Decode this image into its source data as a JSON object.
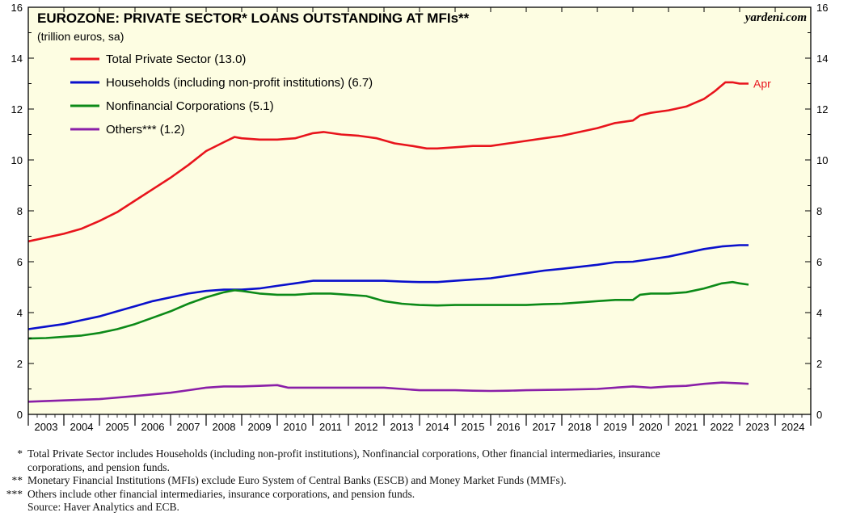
{
  "chart_data": {
    "type": "line",
    "title": "EUROZONE: PRIVATE SECTOR* LOANS OUTSTANDING AT MFIs**",
    "subtitle": "(trillion euros, sa)",
    "source_label": "yardeni.com",
    "ylim": [
      0,
      16
    ],
    "yticks": [
      0,
      2,
      4,
      6,
      8,
      10,
      12,
      14,
      16
    ],
    "xlim": [
      2003,
      2025
    ],
    "xtick_labels": [
      "2003",
      "2004",
      "2005",
      "2006",
      "2007",
      "2008",
      "2009",
      "2010",
      "2011",
      "2012",
      "2013",
      "2014",
      "2015",
      "2016",
      "2017",
      "2018",
      "2019",
      "2020",
      "2021",
      "2022",
      "2023",
      "2024"
    ],
    "annotation": "Apr",
    "background": "#fdfde2",
    "series": [
      {
        "name": "Total Private Sector (13.0)",
        "color": "#e8141c",
        "points": [
          [
            2003.0,
            6.8
          ],
          [
            2003.5,
            6.95
          ],
          [
            2004.0,
            7.1
          ],
          [
            2004.5,
            7.3
          ],
          [
            2005.0,
            7.6
          ],
          [
            2005.5,
            7.95
          ],
          [
            2006.0,
            8.4
          ],
          [
            2006.5,
            8.85
          ],
          [
            2007.0,
            9.3
          ],
          [
            2007.5,
            9.8
          ],
          [
            2008.0,
            10.35
          ],
          [
            2008.5,
            10.7
          ],
          [
            2008.8,
            10.9
          ],
          [
            2009.0,
            10.85
          ],
          [
            2009.5,
            10.8
          ],
          [
            2010.0,
            10.8
          ],
          [
            2010.5,
            10.85
          ],
          [
            2011.0,
            11.05
          ],
          [
            2011.3,
            11.1
          ],
          [
            2011.8,
            11.0
          ],
          [
            2012.3,
            10.95
          ],
          [
            2012.8,
            10.85
          ],
          [
            2013.3,
            10.65
          ],
          [
            2013.8,
            10.55
          ],
          [
            2014.2,
            10.45
          ],
          [
            2014.5,
            10.45
          ],
          [
            2015.0,
            10.5
          ],
          [
            2015.5,
            10.55
          ],
          [
            2016.0,
            10.55
          ],
          [
            2016.5,
            10.65
          ],
          [
            2017.0,
            10.75
          ],
          [
            2017.5,
            10.85
          ],
          [
            2018.0,
            10.95
          ],
          [
            2018.5,
            11.1
          ],
          [
            2019.0,
            11.25
          ],
          [
            2019.5,
            11.45
          ],
          [
            2020.0,
            11.55
          ],
          [
            2020.2,
            11.75
          ],
          [
            2020.5,
            11.85
          ],
          [
            2021.0,
            11.95
          ],
          [
            2021.5,
            12.1
          ],
          [
            2022.0,
            12.4
          ],
          [
            2022.3,
            12.7
          ],
          [
            2022.6,
            13.05
          ],
          [
            2022.8,
            13.05
          ],
          [
            2023.0,
            13.0
          ],
          [
            2023.25,
            13.0
          ]
        ]
      },
      {
        "name": "Households (including non-profit institutions) (6.7)",
        "color": "#0a10cc",
        "points": [
          [
            2003.0,
            3.35
          ],
          [
            2003.5,
            3.45
          ],
          [
            2004.0,
            3.55
          ],
          [
            2004.5,
            3.7
          ],
          [
            2005.0,
            3.85
          ],
          [
            2005.5,
            4.05
          ],
          [
            2006.0,
            4.25
          ],
          [
            2006.5,
            4.45
          ],
          [
            2007.0,
            4.6
          ],
          [
            2007.5,
            4.75
          ],
          [
            2008.0,
            4.85
          ],
          [
            2008.5,
            4.9
          ],
          [
            2009.0,
            4.9
          ],
          [
            2009.5,
            4.95
          ],
          [
            2010.0,
            5.05
          ],
          [
            2010.5,
            5.15
          ],
          [
            2011.0,
            5.25
          ],
          [
            2011.5,
            5.25
          ],
          [
            2012.0,
            5.25
          ],
          [
            2012.5,
            5.25
          ],
          [
            2013.0,
            5.25
          ],
          [
            2013.5,
            5.22
          ],
          [
            2014.0,
            5.2
          ],
          [
            2014.5,
            5.2
          ],
          [
            2015.0,
            5.25
          ],
          [
            2015.5,
            5.3
          ],
          [
            2016.0,
            5.35
          ],
          [
            2016.5,
            5.45
          ],
          [
            2017.0,
            5.55
          ],
          [
            2017.5,
            5.65
          ],
          [
            2018.0,
            5.72
          ],
          [
            2018.5,
            5.8
          ],
          [
            2019.0,
            5.88
          ],
          [
            2019.5,
            5.98
          ],
          [
            2020.0,
            6.0
          ],
          [
            2020.5,
            6.1
          ],
          [
            2021.0,
            6.2
          ],
          [
            2021.5,
            6.35
          ],
          [
            2022.0,
            6.5
          ],
          [
            2022.5,
            6.6
          ],
          [
            2023.0,
            6.65
          ],
          [
            2023.25,
            6.65
          ]
        ]
      },
      {
        "name": "Nonfinancial Corporations (5.1)",
        "color": "#0c8a18",
        "points": [
          [
            2003.0,
            2.98
          ],
          [
            2003.5,
            3.0
          ],
          [
            2004.0,
            3.05
          ],
          [
            2004.5,
            3.1
          ],
          [
            2005.0,
            3.2
          ],
          [
            2005.5,
            3.35
          ],
          [
            2006.0,
            3.55
          ],
          [
            2006.5,
            3.8
          ],
          [
            2007.0,
            4.05
          ],
          [
            2007.5,
            4.35
          ],
          [
            2008.0,
            4.6
          ],
          [
            2008.5,
            4.8
          ],
          [
            2008.8,
            4.88
          ],
          [
            2009.0,
            4.85
          ],
          [
            2009.5,
            4.75
          ],
          [
            2010.0,
            4.7
          ],
          [
            2010.5,
            4.7
          ],
          [
            2011.0,
            4.75
          ],
          [
            2011.5,
            4.75
          ],
          [
            2012.0,
            4.7
          ],
          [
            2012.5,
            4.65
          ],
          [
            2013.0,
            4.45
          ],
          [
            2013.5,
            4.35
          ],
          [
            2014.0,
            4.3
          ],
          [
            2014.5,
            4.28
          ],
          [
            2015.0,
            4.3
          ],
          [
            2015.5,
            4.3
          ],
          [
            2016.0,
            4.3
          ],
          [
            2016.5,
            4.3
          ],
          [
            2017.0,
            4.3
          ],
          [
            2017.5,
            4.33
          ],
          [
            2018.0,
            4.35
          ],
          [
            2018.5,
            4.4
          ],
          [
            2019.0,
            4.45
          ],
          [
            2019.5,
            4.5
          ],
          [
            2020.0,
            4.5
          ],
          [
            2020.2,
            4.7
          ],
          [
            2020.5,
            4.75
          ],
          [
            2021.0,
            4.75
          ],
          [
            2021.5,
            4.8
          ],
          [
            2022.0,
            4.95
          ],
          [
            2022.5,
            5.15
          ],
          [
            2022.8,
            5.2
          ],
          [
            2023.0,
            5.15
          ],
          [
            2023.25,
            5.1
          ]
        ]
      },
      {
        "name": "Others*** (1.2)",
        "color": "#8a1fa8",
        "points": [
          [
            2003.0,
            0.5
          ],
          [
            2004.0,
            0.55
          ],
          [
            2005.0,
            0.6
          ],
          [
            2006.0,
            0.72
          ],
          [
            2007.0,
            0.85
          ],
          [
            2007.5,
            0.95
          ],
          [
            2008.0,
            1.05
          ],
          [
            2008.5,
            1.1
          ],
          [
            2009.0,
            1.1
          ],
          [
            2009.5,
            1.12
          ],
          [
            2010.0,
            1.15
          ],
          [
            2010.3,
            1.05
          ],
          [
            2010.5,
            1.05
          ],
          [
            2011.0,
            1.05
          ],
          [
            2012.0,
            1.05
          ],
          [
            2013.0,
            1.05
          ],
          [
            2013.5,
            1.0
          ],
          [
            2014.0,
            0.95
          ],
          [
            2015.0,
            0.95
          ],
          [
            2015.5,
            0.93
          ],
          [
            2016.0,
            0.92
          ],
          [
            2016.5,
            0.93
          ],
          [
            2017.0,
            0.95
          ],
          [
            2018.0,
            0.97
          ],
          [
            2019.0,
            1.0
          ],
          [
            2019.5,
            1.05
          ],
          [
            2020.0,
            1.1
          ],
          [
            2020.5,
            1.05
          ],
          [
            2021.0,
            1.1
          ],
          [
            2021.5,
            1.12
          ],
          [
            2022.0,
            1.2
          ],
          [
            2022.5,
            1.25
          ],
          [
            2023.0,
            1.22
          ],
          [
            2023.25,
            1.2
          ]
        ]
      }
    ]
  },
  "footnotes": [
    {
      "mark": "*",
      "lines": [
        "Total Private Sector includes Households (including non-profit institutions), Nonfinancial corporations, Other financial intermediaries, insurance",
        "corporations, and pension funds."
      ]
    },
    {
      "mark": "**",
      "lines": [
        "Monetary Financial Institutions (MFIs) exclude Euro System of Central Banks (ESCB) and Money Market Funds (MMFs)."
      ]
    },
    {
      "mark": "***",
      "lines": [
        "Others include other financial intermediaries, insurance corporations, and pension funds."
      ]
    },
    {
      "mark": "",
      "lines": [
        "Source: Haver Analytics and ECB."
      ]
    }
  ]
}
